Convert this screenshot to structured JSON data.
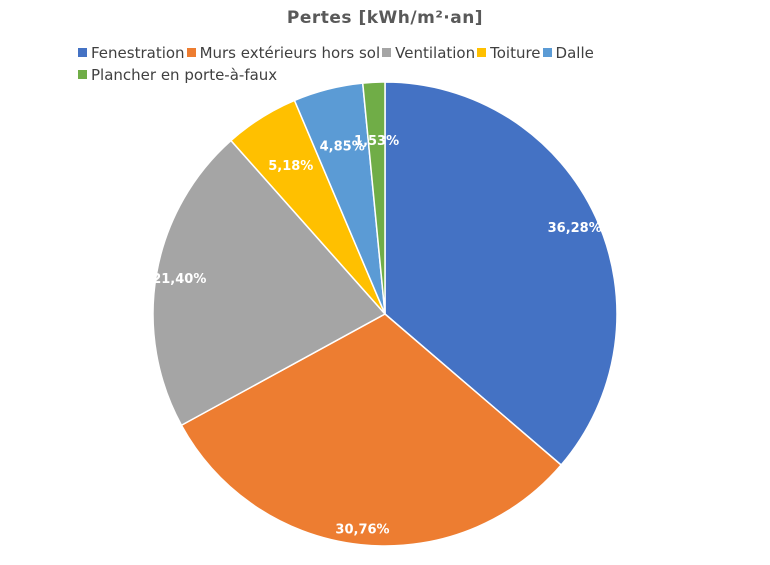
{
  "chart_data": {
    "type": "pie",
    "title": "Pertes [kWh/m²·an]",
    "categories": [
      "Fenestration",
      "Murs extérieurs hors sol",
      "Ventilation",
      "Toiture",
      "Dalle",
      "Plancher en porte-à-faux"
    ],
    "values": [
      36.28,
      30.76,
      21.4,
      5.18,
      4.85,
      1.53
    ],
    "data_labels": [
      "36,28%",
      "30,76%",
      "21,40%",
      "5,18%",
      "4,85%",
      "1,53%"
    ],
    "colors": [
      "#4472C4",
      "#ED7D31",
      "#A5A5A5",
      "#FFC000",
      "#5B9BD5",
      "#70AD47"
    ],
    "legend_position": "top",
    "start_angle_deg": 0,
    "direction": "clockwise"
  }
}
